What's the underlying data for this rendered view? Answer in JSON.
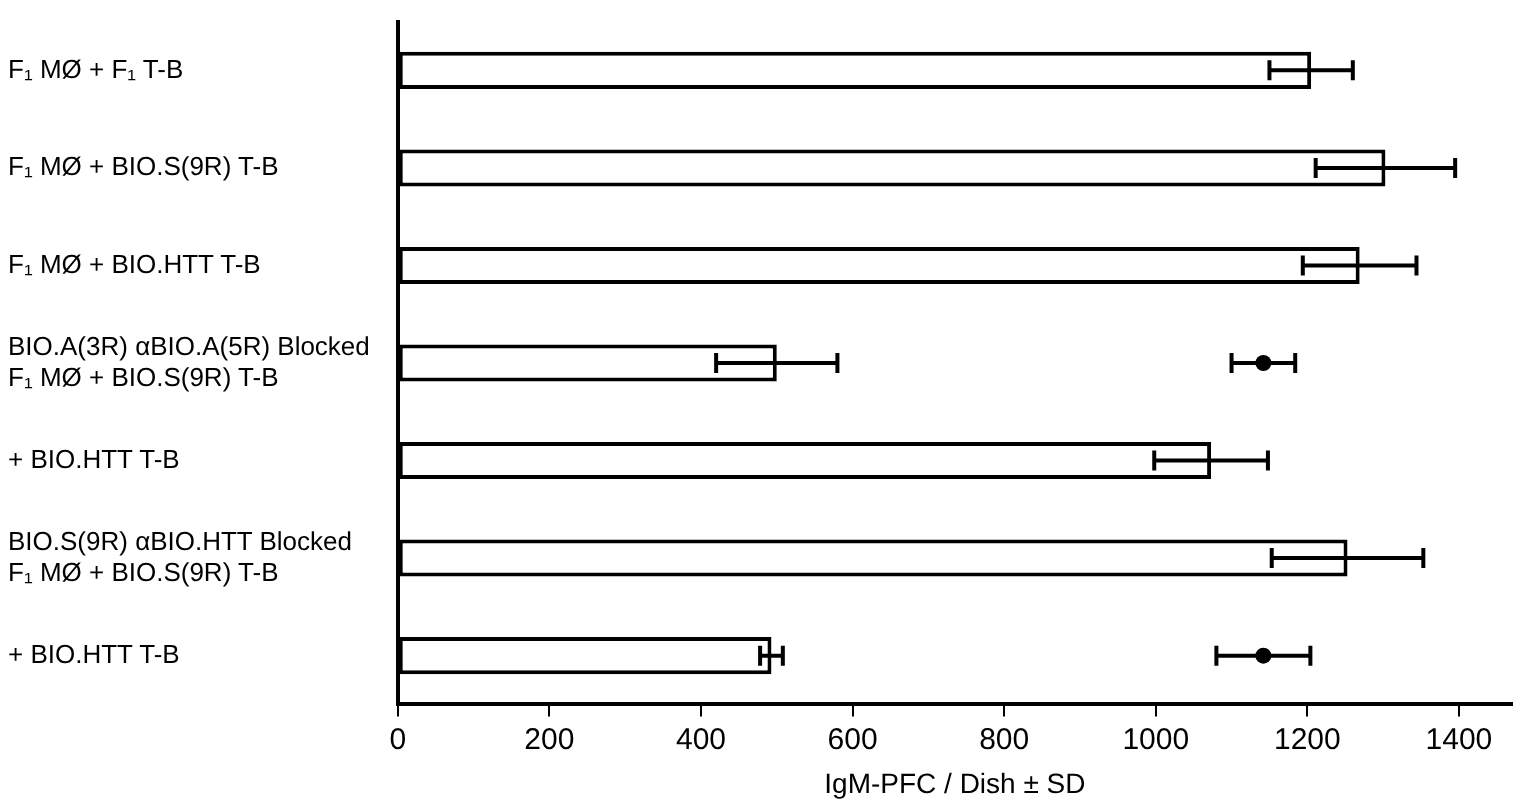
{
  "chart_data": {
    "type": "bar",
    "orientation": "horizontal",
    "xlabel": "IgM-PFC / Dish ± SD",
    "categories": [
      "F₁ MØ + F₁ T-B",
      "F₁ MØ + BIO.S(9R) T-B",
      "F₁ MØ + BIO.HTT T-B",
      "BIO.A(3R) αBIO.A(5R) Blocked\nF₁ MØ + BIO.S(9R) T-B",
      "+ BIO.HTT T-B",
      "BIO.S(9R) αBIO.HTT Blocked\nF₁ MØ + BIO.S(9R) T-B",
      "+ BIO.HTT T-B"
    ],
    "series": [
      {
        "type": "bar",
        "color": "#ffffff",
        "values": [
          1205,
          1303,
          1269,
          500,
          1073,
          1253,
          493
        ],
        "errors": [
          55,
          92,
          75,
          80,
          75,
          100,
          15
        ]
      },
      {
        "type": "scatter",
        "color": "#000000",
        "marker": "circle",
        "values": [
          null,
          null,
          null,
          1142,
          null,
          null,
          1142
        ],
        "errors": [
          null,
          null,
          null,
          42,
          null,
          null,
          62
        ]
      }
    ],
    "xlim": [
      0,
      1470
    ],
    "xticks": [
      0,
      200,
      400,
      600,
      800,
      1000,
      1200,
      1400
    ],
    "legend": false
  }
}
